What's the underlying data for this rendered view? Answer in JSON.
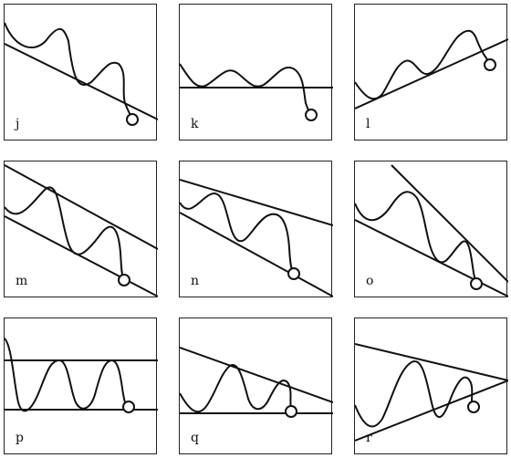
{
  "panels": [
    {
      "label": "j"
    },
    {
      "label": "k"
    },
    {
      "label": "l"
    },
    {
      "label": "m"
    },
    {
      "label": "n"
    },
    {
      "label": "o"
    },
    {
      "label": "p"
    },
    {
      "label": "q"
    },
    {
      "label": "r"
    }
  ]
}
